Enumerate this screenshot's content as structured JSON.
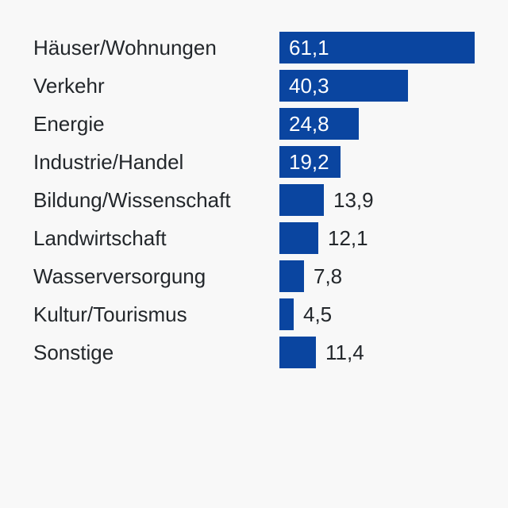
{
  "chart_data": {
    "type": "bar",
    "orientation": "horizontal",
    "title": "",
    "xlabel": "",
    "ylabel": "",
    "xlim": [
      0,
      61.1
    ],
    "grid": false,
    "legend": "none",
    "bar_color": "#0a45a0",
    "inside_label_color": "#ffffff",
    "outside_label_color": "#23272b",
    "categories": [
      "Häuser/Wohnungen",
      "Verkehr",
      "Energie",
      "Industrie/Handel",
      "Bildung/Wissenschaft",
      "Landwirtschaft",
      "Wasserversorgung",
      "Kultur/Tourismus",
      "Sonstige"
    ],
    "values": [
      61.1,
      40.3,
      24.8,
      19.2,
      13.9,
      12.1,
      7.8,
      4.5,
      11.4
    ],
    "value_labels": [
      "61,1",
      "40,3",
      "24,8",
      "19,2",
      "13,9",
      "12,1",
      "7,8",
      "4,5",
      "11,4"
    ]
  }
}
